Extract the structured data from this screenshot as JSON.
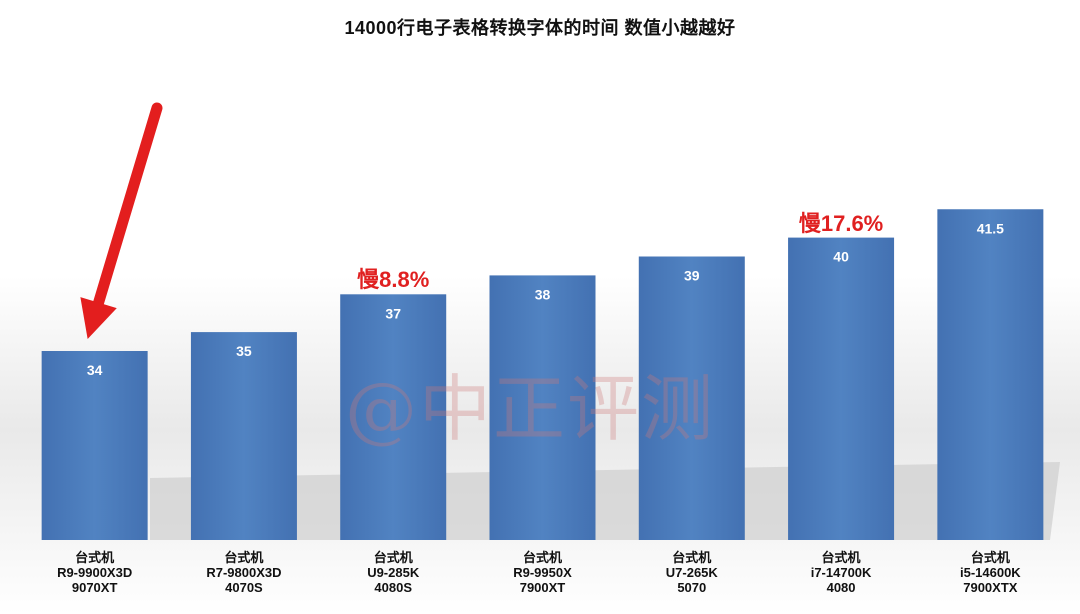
{
  "chart_data": {
    "type": "bar",
    "title": "14000行电子表格转换字体的时间 数值小越越好",
    "categories": [
      [
        "台式机",
        "R9-9900X3D",
        "9070XT"
      ],
      [
        "台式机",
        "R7-9800X3D",
        "4070S"
      ],
      [
        "台式机",
        "U9-285K",
        "4080S"
      ],
      [
        "台式机",
        "R9-9950X",
        "7900XT"
      ],
      [
        "台式机",
        "U7-265K",
        "5070"
      ],
      [
        "台式机",
        "i7-14700K",
        "4080"
      ],
      [
        "台式机",
        "i5-14600K",
        "7900XTX"
      ]
    ],
    "values": [
      34,
      35,
      37,
      38,
      39,
      40,
      41.5
    ],
    "value_labels": [
      "34",
      "35",
      "37",
      "38",
      "39",
      "40",
      "41.5"
    ],
    "ylim": [
      24,
      44
    ],
    "bar_color": "#4a7ab8",
    "grid": false,
    "annotations": [
      {
        "text": "慢8.8%",
        "category_index": 2,
        "color": "#e02020"
      },
      {
        "text": "慢17.6%",
        "category_index": 5,
        "color": "#e02020"
      }
    ],
    "highlight_arrow": {
      "category_index": 0,
      "color": "#e31e1e"
    }
  },
  "watermark": "@中正评测"
}
